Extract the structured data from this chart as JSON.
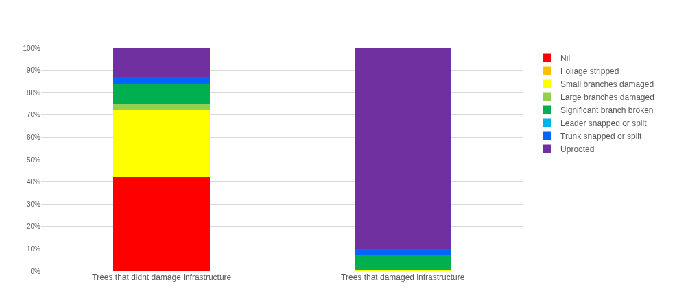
{
  "chart_data": {
    "type": "bar",
    "stacked": true,
    "categories": [
      "Trees that didnt damage infrastructure",
      "Trees that damaged infrastructure"
    ],
    "series": [
      {
        "name": "Nil",
        "color": "#ff0000",
        "values": [
          42,
          0
        ]
      },
      {
        "name": "Foliage stripped",
        "color": "#ffc000",
        "values": [
          0,
          0
        ]
      },
      {
        "name": "Small branches damaged",
        "color": "#ffff00",
        "values": [
          30,
          0.5
        ]
      },
      {
        "name": "Large branches damaged",
        "color": "#92d050",
        "values": [
          3,
          0
        ]
      },
      {
        "name": "Significant branch broken",
        "color": "#00b050",
        "values": [
          9,
          6.5
        ]
      },
      {
        "name": "Leader snapped or split",
        "color": "#00b0f0",
        "values": [
          0,
          0
        ]
      },
      {
        "name": "Trunk snapped or split",
        "color": "#0066ff",
        "values": [
          3,
          3
        ]
      },
      {
        "name": "Uprooted",
        "color": "#7030a0",
        "values": [
          13,
          90
        ]
      }
    ],
    "ylim": [
      0,
      100
    ],
    "yticks": [
      {
        "value": 0,
        "label": "0%"
      },
      {
        "value": 10,
        "label": "10%"
      },
      {
        "value": 20,
        "label": "20%"
      },
      {
        "value": 30,
        "label": "30%"
      },
      {
        "value": 40,
        "label": "40%"
      },
      {
        "value": 50,
        "label": "50%"
      },
      {
        "value": 60,
        "label": "60%"
      },
      {
        "value": 70,
        "label": "70%"
      },
      {
        "value": 80,
        "label": "80%"
      },
      {
        "value": 90,
        "label": "90%"
      },
      {
        "value": 100,
        "label": "100%"
      }
    ],
    "grid": "y",
    "legend": "right"
  }
}
